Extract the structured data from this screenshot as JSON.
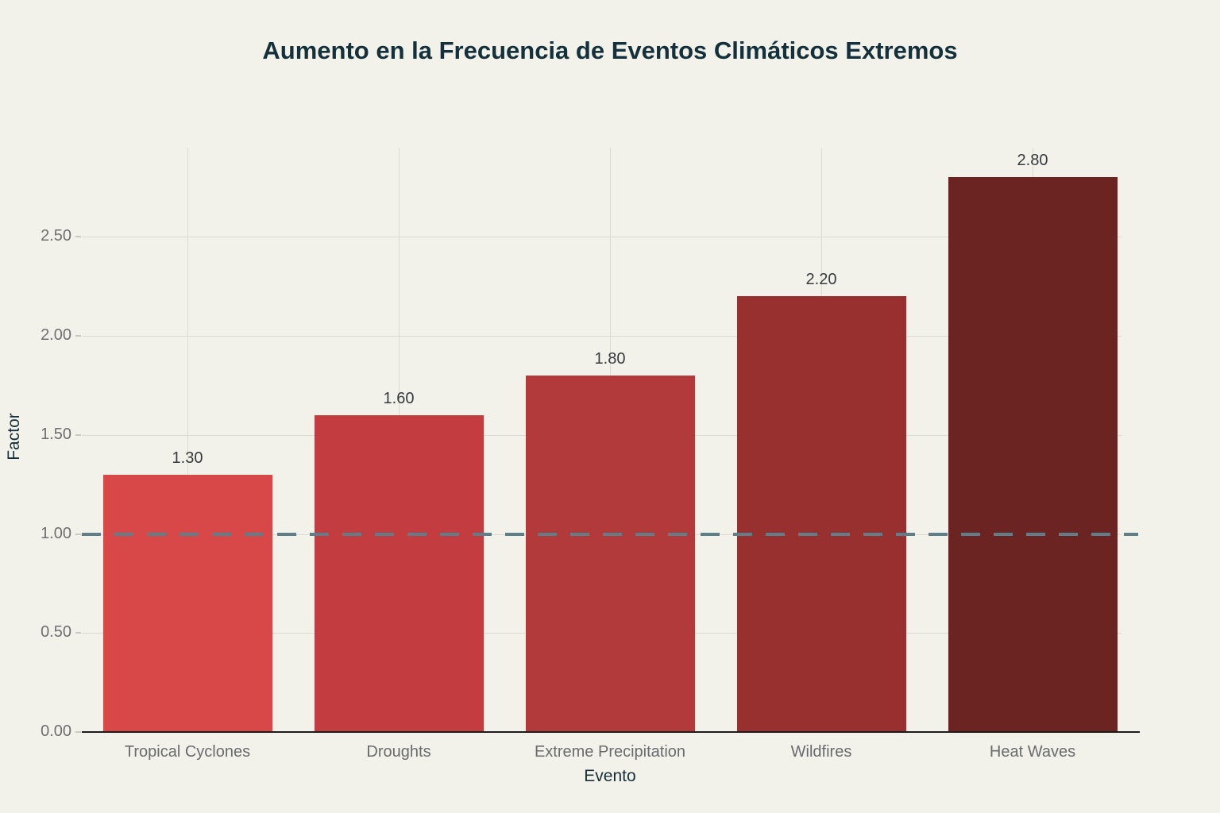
{
  "chart_data": {
    "type": "bar",
    "title": "Aumento en la Frecuencia de Eventos Climáticos Extremos",
    "xlabel": "Evento",
    "ylabel": "Factor",
    "categories": [
      "Tropical Cyclones",
      "Droughts",
      "Extreme Precipitation",
      "Wildfires",
      "Heat Waves"
    ],
    "values": [
      1.3,
      1.6,
      1.8,
      2.2,
      2.8
    ],
    "value_labels": [
      "1.30",
      "1.60",
      "1.80",
      "2.20",
      "2.80"
    ],
    "bar_colors": [
      "#D94848",
      "#C33D40",
      "#B23A3B",
      "#983030",
      "#6B2421"
    ],
    "yticks": [
      0.0,
      0.5,
      1.0,
      1.5,
      2.0,
      2.5
    ],
    "ytick_labels": [
      "0.00",
      "0.50",
      "1.00",
      "1.50",
      "2.00",
      "2.50"
    ],
    "ylim": [
      0,
      2.95
    ],
    "grid": true,
    "legend": "none",
    "reference_line": {
      "y": 1.0,
      "style": "dashed",
      "color": "#5E7F8A"
    },
    "colors": {
      "background": "#F2F1EA",
      "title": "#13303B",
      "axis_titles": "#15303A",
      "tick_labels": "#6E7072",
      "category_labels": "#696B6D",
      "value_labels": "#363B3E",
      "gridline": "#DBDBD4",
      "axis_line": "#1C1C1C",
      "reference_line": "#5E7F8A"
    }
  }
}
